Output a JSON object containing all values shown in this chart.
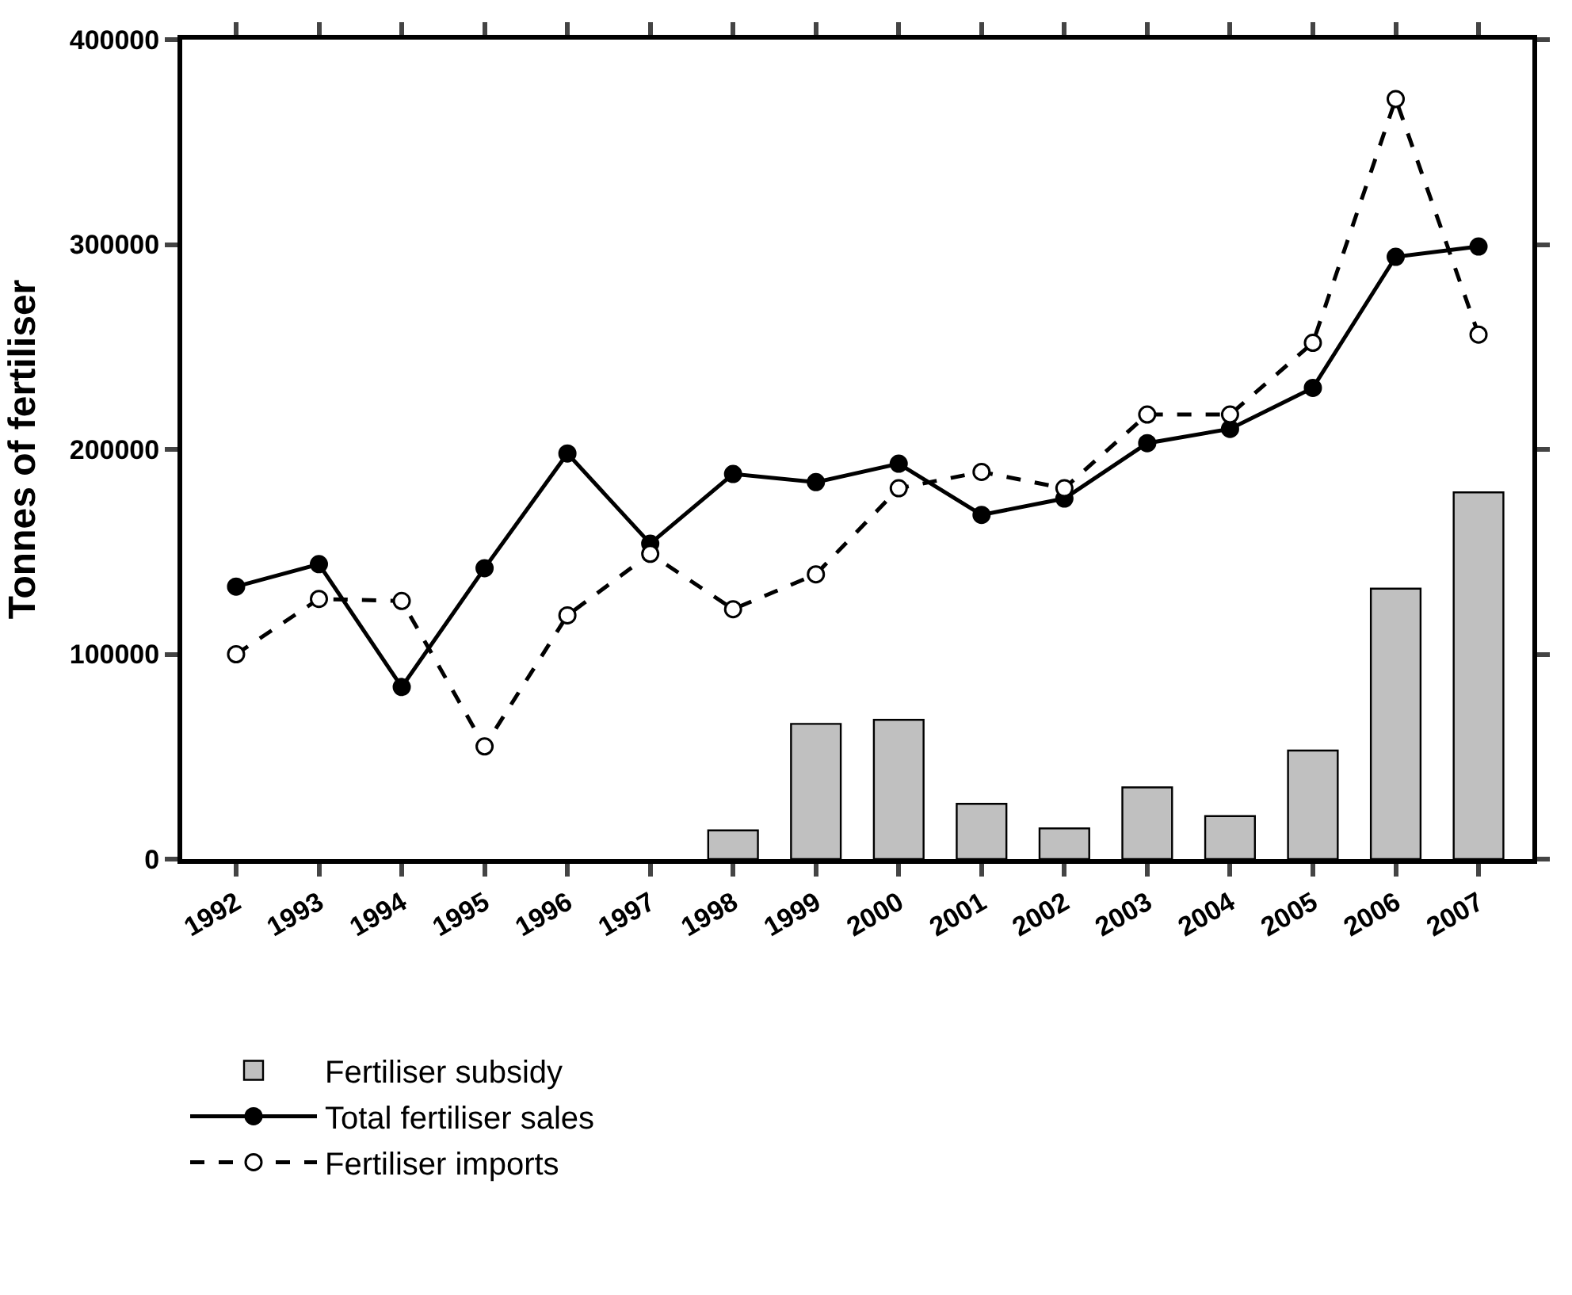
{
  "chart_data": {
    "type": "bar",
    "ylabel": "Tonnes of fertiliser",
    "categories": [
      "1992",
      "1993",
      "1994",
      "1995",
      "1996",
      "1997",
      "1998",
      "1999",
      "2000",
      "2001",
      "2002",
      "2003",
      "2004",
      "2005",
      "2006",
      "2007"
    ],
    "series": [
      {
        "name": "Fertiliser subsidy",
        "color": "#c0c0c0",
        "values": [
          null,
          null,
          null,
          null,
          null,
          null,
          14000,
          66000,
          68000,
          27000,
          15000,
          35000,
          21000,
          53000,
          132000,
          179000
        ]
      },
      {
        "name": "Total fertiliser sales",
        "type": "line",
        "color": "#000000",
        "line_style": "solid",
        "marker": "circle",
        "values": [
          133000,
          144000,
          84000,
          142000,
          198000,
          154000,
          188000,
          184000,
          193000,
          168000,
          176000,
          203000,
          210000,
          230000,
          294000,
          299000
        ]
      },
      {
        "name": "Fertiliser imports",
        "type": "line",
        "color": "#000000",
        "line_style": "dashed",
        "marker": "circle",
        "values": [
          100000,
          127000,
          126000,
          55000,
          119000,
          149000,
          122000,
          139000,
          181000,
          189000,
          181000,
          217000,
          217000,
          252000,
          371000,
          256000
        ]
      }
    ],
    "ylim": [
      0,
      400000
    ],
    "yticks": [
      0,
      100000,
      200000,
      300000,
      400000
    ],
    "legend": "bottom"
  }
}
